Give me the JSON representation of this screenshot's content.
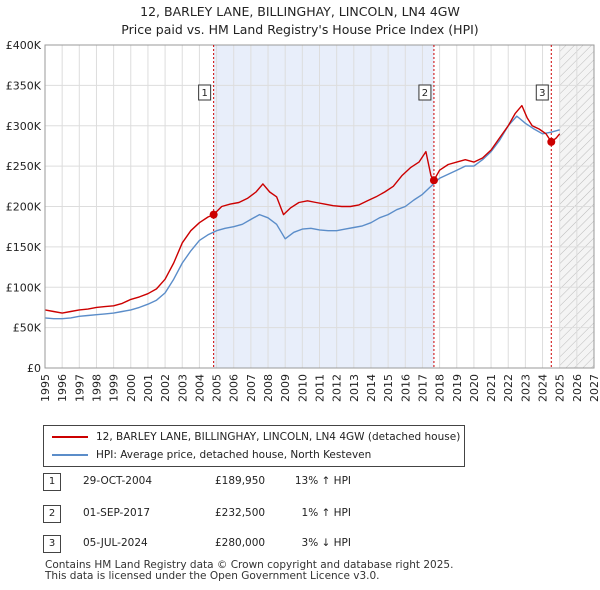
{
  "title_line1": "12, BARLEY LANE, BILLINGHAY, LINCOLN, LN4 4GW",
  "title_line2": "Price paid vs. HM Land Registry's House Price Index (HPI)",
  "colors": {
    "property": "#cc0000",
    "hpi": "#5b8dc9",
    "highlight": "#e8eefa",
    "marker_line": "#cc0000",
    "grid": "#dddddd"
  },
  "legend": {
    "property_label": "12, BARLEY LANE, BILLINGHAY, LINCOLN, LN4 4GW (detached house)",
    "hpi_label": "HPI: Average price, detached house, North Kesteven"
  },
  "sales": [
    {
      "num": "1",
      "date": "29-OCT-2004",
      "price": "£189,950",
      "hpi": "13% ↑ HPI"
    },
    {
      "num": "2",
      "date": "01-SEP-2017",
      "price": "£232,500",
      "hpi": "1% ↑ HPI"
    },
    {
      "num": "3",
      "date": "05-JUL-2024",
      "price": "£280,000",
      "hpi": "3% ↓ HPI"
    }
  ],
  "footer_line1": "Contains HM Land Registry data © Crown copyright and database right 2025.",
  "footer_line2": "This data is licensed under the Open Government Licence v3.0.",
  "chart_data": {
    "type": "line",
    "xlim": [
      1995,
      2027
    ],
    "ylim": [
      0,
      400000
    ],
    "y_ticks": [
      {
        "value": 0,
        "label": "£0"
      },
      {
        "value": 50000,
        "label": "£50K"
      },
      {
        "value": 100000,
        "label": "£100K"
      },
      {
        "value": 150000,
        "label": "£150K"
      },
      {
        "value": 200000,
        "label": "£200K"
      },
      {
        "value": 250000,
        "label": "£250K"
      },
      {
        "value": 300000,
        "label": "£300K"
      },
      {
        "value": 350000,
        "label": "£350K"
      },
      {
        "value": 400000,
        "label": "£400K"
      }
    ],
    "x_ticks": [
      1995,
      1996,
      1997,
      1998,
      1999,
      2000,
      2001,
      2002,
      2003,
      2004,
      2005,
      2006,
      2007,
      2008,
      2009,
      2010,
      2011,
      2012,
      2013,
      2014,
      2015,
      2016,
      2017,
      2018,
      2019,
      2020,
      2021,
      2022,
      2023,
      2024,
      2025,
      2026,
      2027
    ],
    "grid": true,
    "highlight_range": [
      2004.83,
      2017.67
    ],
    "forecast_start": 2025.0,
    "markers": [
      {
        "label": "1",
        "x": 2004.83,
        "y": 189950
      },
      {
        "label": "2",
        "x": 2017.67,
        "y": 232500
      },
      {
        "label": "3",
        "x": 2024.51,
        "y": 280000
      }
    ],
    "series": [
      {
        "name": "12, BARLEY LANE, BILLINGHAY, LINCOLN, LN4 4GW (detached house)",
        "x": [
          1995,
          1995.5,
          1996,
          1996.5,
          1997,
          1997.5,
          1998,
          1998.5,
          1999,
          1999.5,
          2000,
          2000.5,
          2001,
          2001.5,
          2002,
          2002.5,
          2003,
          2003.5,
          2004,
          2004.5,
          2004.83,
          2005.3,
          2005.8,
          2006.3,
          2006.8,
          2007.3,
          2007.7,
          2008.1,
          2008.5,
          2008.9,
          2009.3,
          2009.8,
          2010.3,
          2010.8,
          2011.3,
          2011.8,
          2012.3,
          2012.8,
          2013.3,
          2013.8,
          2014.3,
          2014.8,
          2015.3,
          2015.8,
          2016.3,
          2016.8,
          2017.2,
          2017.5,
          2017.67,
          2018.0,
          2018.5,
          2019.0,
          2019.5,
          2020.0,
          2020.5,
          2021.0,
          2021.5,
          2022.0,
          2022.4,
          2022.8,
          2023.1,
          2023.4,
          2023.8,
          2024.2,
          2024.51,
          2024.8,
          2025.0
        ],
        "y": [
          72000,
          70000,
          68000,
          70000,
          72000,
          73000,
          75000,
          76000,
          77000,
          80000,
          85000,
          88000,
          92000,
          98000,
          110000,
          130000,
          155000,
          170000,
          180000,
          187000,
          189950,
          200000,
          203000,
          205000,
          210000,
          218000,
          228000,
          218000,
          212000,
          190000,
          198000,
          205000,
          207000,
          205000,
          203000,
          201000,
          200000,
          200000,
          202000,
          207000,
          212000,
          218000,
          225000,
          238000,
          248000,
          255000,
          268000,
          238000,
          232500,
          245000,
          252000,
          255000,
          258000,
          255000,
          260000,
          270000,
          285000,
          300000,
          315000,
          325000,
          310000,
          300000,
          296000,
          290000,
          280000,
          285000,
          290000
        ]
      },
      {
        "name": "HPI: Average price, detached house, North Kesteven",
        "x": [
          1995,
          1995.5,
          1996,
          1996.5,
          1997,
          1997.5,
          1998,
          1998.5,
          1999,
          1999.5,
          2000,
          2000.5,
          2001,
          2001.5,
          2002,
          2002.5,
          2003,
          2003.5,
          2004,
          2004.5,
          2005,
          2005.5,
          2006,
          2006.5,
          2007,
          2007.5,
          2008,
          2008.5,
          2009,
          2009.5,
          2010,
          2010.5,
          2011,
          2011.5,
          2012,
          2012.5,
          2013,
          2013.5,
          2014,
          2014.5,
          2015,
          2015.5,
          2016,
          2016.5,
          2017,
          2017.5,
          2018,
          2018.5,
          2019,
          2019.5,
          2020,
          2020.5,
          2021,
          2021.5,
          2022,
          2022.5,
          2023,
          2023.5,
          2024,
          2024.5,
          2025.0
        ],
        "y": [
          62000,
          61000,
          61000,
          62000,
          64000,
          65000,
          66000,
          67000,
          68000,
          70000,
          72000,
          75000,
          79000,
          84000,
          93000,
          110000,
          130000,
          145000,
          158000,
          165000,
          170000,
          173000,
          175000,
          178000,
          184000,
          190000,
          186000,
          178000,
          160000,
          168000,
          172000,
          173000,
          171000,
          170000,
          170000,
          172000,
          174000,
          176000,
          180000,
          186000,
          190000,
          196000,
          200000,
          208000,
          215000,
          225000,
          235000,
          240000,
          245000,
          250000,
          250000,
          258000,
          268000,
          282000,
          300000,
          312000,
          303000,
          296000,
          290000,
          292000,
          295000
        ]
      }
    ]
  }
}
